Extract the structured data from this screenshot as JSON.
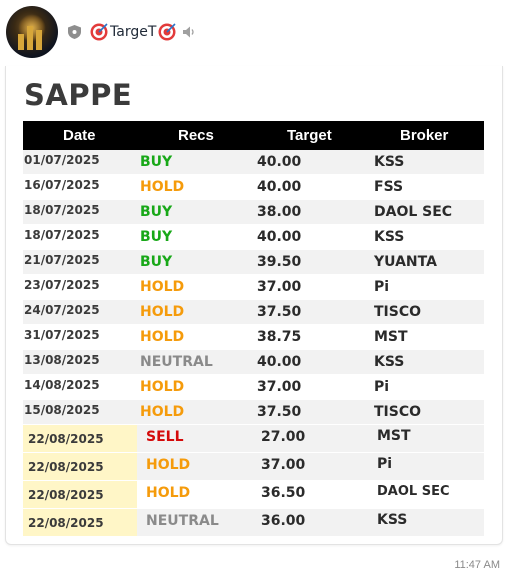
{
  "channel": {
    "name": "TargeT",
    "time": "11:47 AM"
  },
  "colors": {
    "buy": "#18a818",
    "hold": "#f59b0b",
    "neutral": "#8a8a8a",
    "sell": "#d40a0a",
    "highlight": "#fff6c7"
  },
  "post": {
    "title": "SAPPE",
    "headers": {
      "date": "Date",
      "recs": "Recs",
      "target": "Target",
      "broker": "Broker"
    },
    "rows": [
      {
        "date": "01/07/2025",
        "rec": "BUY",
        "target": "40.00",
        "broker": "KSS"
      },
      {
        "date": "16/07/2025",
        "rec": "HOLD",
        "target": "40.00",
        "broker": "FSS"
      },
      {
        "date": "18/07/2025",
        "rec": "BUY",
        "target": "38.00",
        "broker": "DAOL SEC"
      },
      {
        "date": "18/07/2025",
        "rec": "BUY",
        "target": "40.00",
        "broker": "KSS"
      },
      {
        "date": "21/07/2025",
        "rec": "BUY",
        "target": "39.50",
        "broker": "YUANTA"
      },
      {
        "date": "23/07/2025",
        "rec": "HOLD",
        "target": "37.00",
        "broker": "Pi"
      },
      {
        "date": "24/07/2025",
        "rec": "HOLD",
        "target": "37.50",
        "broker": "TISCO"
      },
      {
        "date": "31/07/2025",
        "rec": "HOLD",
        "target": "38.75",
        "broker": "MST"
      },
      {
        "date": "13/08/2025",
        "rec": "NEUTRAL",
        "target": "40.00",
        "broker": "KSS"
      },
      {
        "date": "14/08/2025",
        "rec": "HOLD",
        "target": "37.00",
        "broker": "Pi"
      },
      {
        "date": "15/08/2025",
        "rec": "HOLD",
        "target": "37.50",
        "broker": "TISCO"
      }
    ],
    "new_rows": [
      {
        "date": "22/08/2025",
        "rec": "SELL",
        "target": "27.00",
        "broker": "MST"
      },
      {
        "date": "22/08/2025",
        "rec": "HOLD",
        "target": "37.00",
        "broker": "Pi"
      },
      {
        "date": "22/08/2025",
        "rec": "HOLD",
        "target": "36.50",
        "broker": "DAOL SEC"
      },
      {
        "date": "22/08/2025",
        "rec": "NEUTRAL",
        "target": "36.00",
        "broker": "KSS"
      }
    ]
  }
}
